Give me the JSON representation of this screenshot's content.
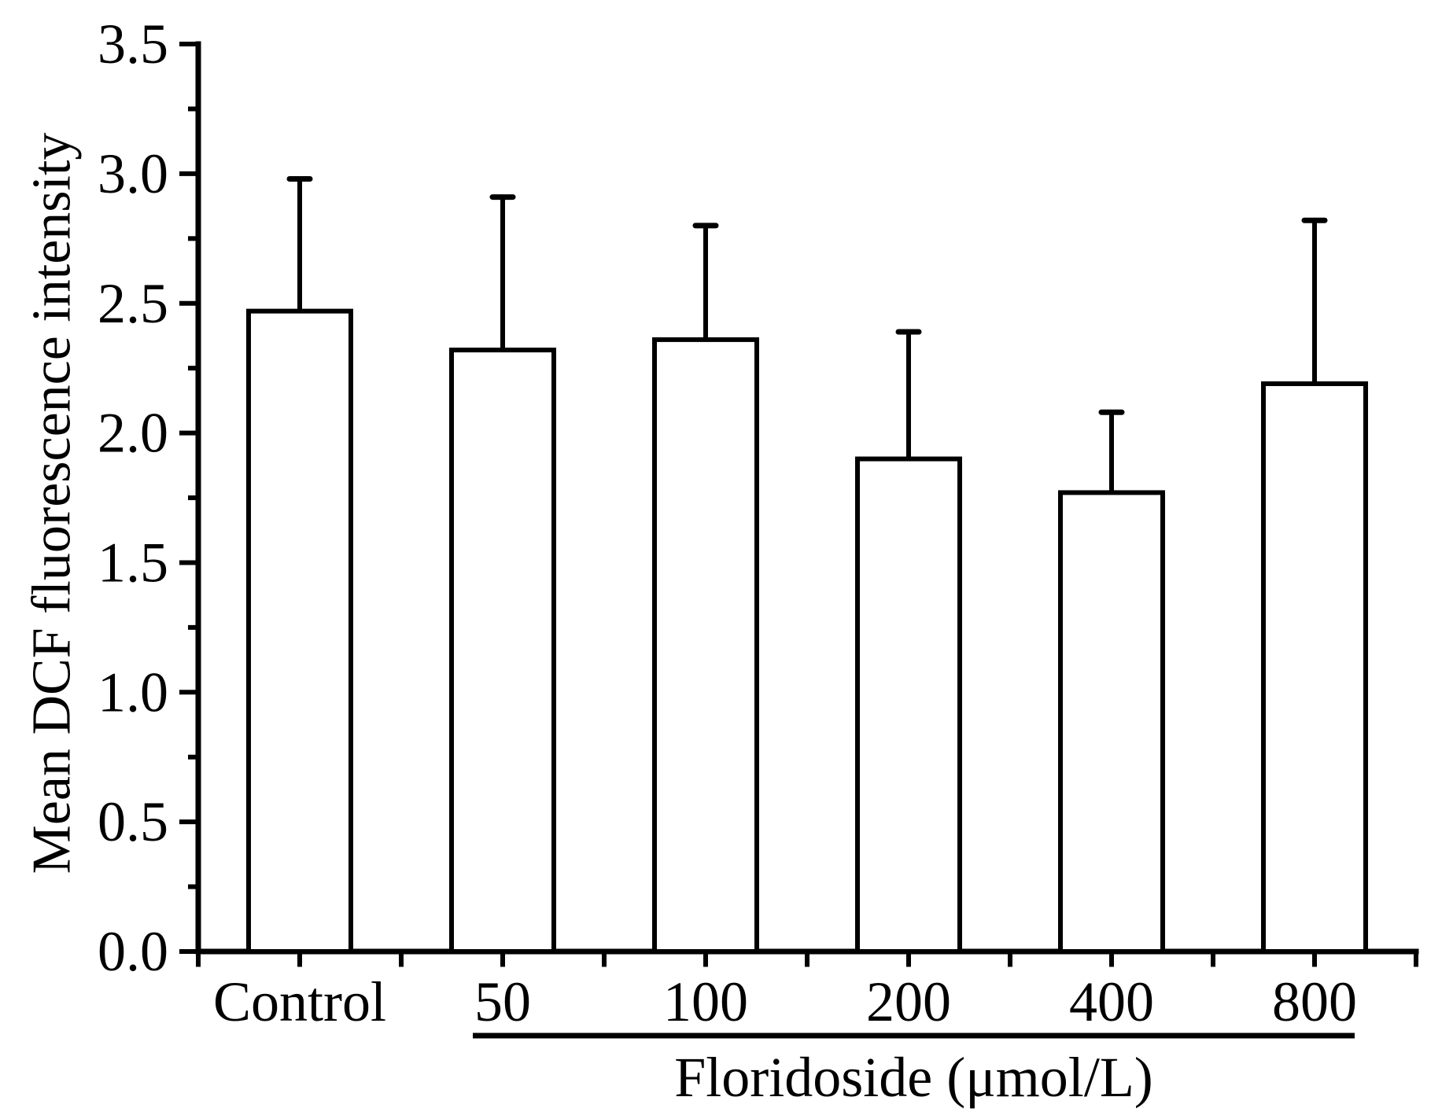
{
  "figure": {
    "background": "#ffffff",
    "ink_color": "#000000"
  },
  "chart_data": {
    "type": "bar",
    "title": "",
    "categories": [
      "Control",
      "50",
      "100",
      "200",
      "400",
      "800"
    ],
    "values": [
      2.47,
      2.32,
      2.36,
      1.9,
      1.77,
      2.19
    ],
    "errors_upper": [
      0.51,
      0.59,
      0.44,
      0.49,
      0.31,
      0.63
    ],
    "error_bar_tops": [
      2.98,
      2.91,
      2.8,
      2.39,
      2.08,
      2.82
    ],
    "xlabel": "Floridoside (μmol/L)",
    "ylabel": "Mean DCF fluorescence intensity",
    "ylim": [
      0,
      3.5
    ],
    "y_tick_labels": [
      "0.0",
      "0.5",
      "1.0",
      "1.5",
      "2.0",
      "2.5",
      "3.0",
      "3.5"
    ],
    "y_minor_tick_step": 0.25,
    "grid": false,
    "legend": null,
    "bar_fill": "#ffffff",
    "bar_stroke": "#000000",
    "dose_group_underline": {
      "from_category": "50",
      "to_category": "800",
      "label": "Floridoside (μmol/L)"
    }
  }
}
